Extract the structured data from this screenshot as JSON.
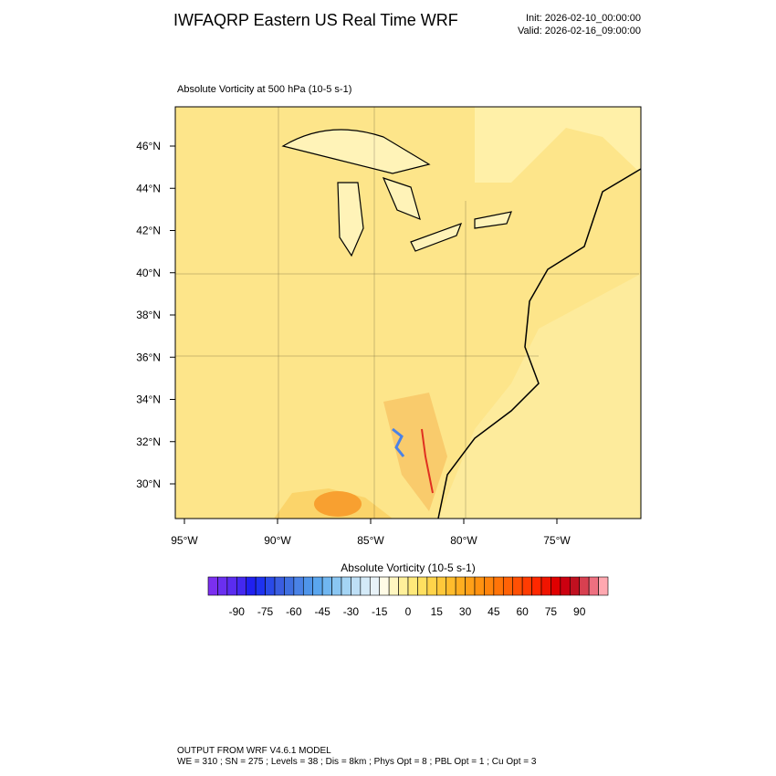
{
  "header": {
    "title": "IWFAQRP Eastern US Real Time WRF",
    "init": "Init: 2026-02-10_00:00:00",
    "valid": "Valid: 2026-02-16_09:00:00"
  },
  "map": {
    "subtitle": "Absolute Vorticity at 500 hPa   (10-5 s-1)",
    "lat_labels": [
      "46°N",
      "44°N",
      "42°N",
      "40°N",
      "38°N",
      "36°N",
      "34°N",
      "32°N",
      "30°N"
    ],
    "lon_labels": [
      "95°W",
      "90°W",
      "85°W",
      "80°W",
      "75°W"
    ]
  },
  "colorbar": {
    "title": "Absolute Vorticity  (10-5 s-1)",
    "labels": [
      "-90",
      "-75",
      "-60",
      "-45",
      "-30",
      "-15",
      "0",
      "15",
      "30",
      "45",
      "60",
      "75",
      "90"
    ],
    "colors": [
      "#7b2ff0",
      "#6a2ff0",
      "#5a2cf0",
      "#4428f0",
      "#2020f0",
      "#1e32f0",
      "#2a4ae8",
      "#3a5de0",
      "#3f6fe0",
      "#4a82e6",
      "#4f95ea",
      "#5aa6ee",
      "#70b6f0",
      "#8ac6f2",
      "#a4d4f4",
      "#bedff6",
      "#d4eaf8",
      "#e8f2f8",
      "#fffbe6",
      "#fff6c0",
      "#fff09a",
      "#ffe97a",
      "#ffe060",
      "#ffd44a",
      "#ffc83a",
      "#ffbc2c",
      "#ffae20",
      "#ffa018",
      "#ff9210",
      "#ff840c",
      "#ff7408",
      "#ff6206",
      "#ff5004",
      "#ff3c02",
      "#ff2800",
      "#f01400",
      "#e00000",
      "#cc0010",
      "#c01020",
      "#d84050",
      "#ee7080",
      "#ffa8b0"
    ]
  },
  "footer": {
    "line1": "OUTPUT FROM WRF V4.6.1 MODEL",
    "line2": "WE = 310 ; SN = 275 ; Levels = 38 ; Dis = 8km ; Phys Opt = 8 ; PBL Opt = 1 ; Cu Opt = 3"
  }
}
